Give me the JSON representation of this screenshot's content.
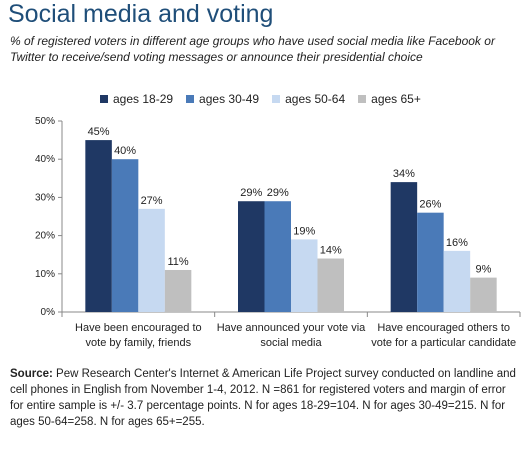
{
  "title": "Social media and voting",
  "subtitle": "% of registered voters in different age groups who have used social media like Facebook or Twitter to receive/send voting messages or announce their presidential choice",
  "source_label": "Source:",
  "source_text": "Pew Research Center's Internet & American Life Project survey conducted on landline and cell phones in English from November 1-4, 2012. N =861 for registered voters and margin of error for entire sample is +/- 3.7 percentage points. N for ages 18-29=104. N for ages 30-49=215. N for ages 50-64=258. N for ages 65+=255.",
  "chart_data": {
    "type": "bar",
    "categories": [
      [
        "Have been encouraged to",
        "vote by family, friends"
      ],
      [
        "Have announced your vote via",
        "social media"
      ],
      [
        "Have encouraged others to",
        "vote for a particular candidate"
      ]
    ],
    "series": [
      {
        "name": "ages 18-29",
        "color": "#1f3864",
        "values": [
          45,
          29,
          34
        ],
        "labels": [
          "45%",
          "29%",
          "34%"
        ]
      },
      {
        "name": "ages 30-49",
        "color": "#4a7ab8",
        "values": [
          40,
          29,
          26
        ],
        "labels": [
          "40%",
          "29%",
          "26%"
        ]
      },
      {
        "name": "ages 50-64",
        "color": "#c6d9f1",
        "values": [
          27,
          19,
          16
        ],
        "labels": [
          "27%",
          "19%",
          "16%"
        ]
      },
      {
        "name": "ages 65+",
        "color": "#bfbfbf",
        "values": [
          11,
          14,
          9
        ],
        "labels": [
          "11%",
          "14%",
          "9%"
        ]
      }
    ],
    "yticks": [
      "0%",
      "10%",
      "20%",
      "30%",
      "40%",
      "50%"
    ],
    "ylim": [
      0,
      50
    ],
    "grid": false,
    "legend": "top"
  }
}
